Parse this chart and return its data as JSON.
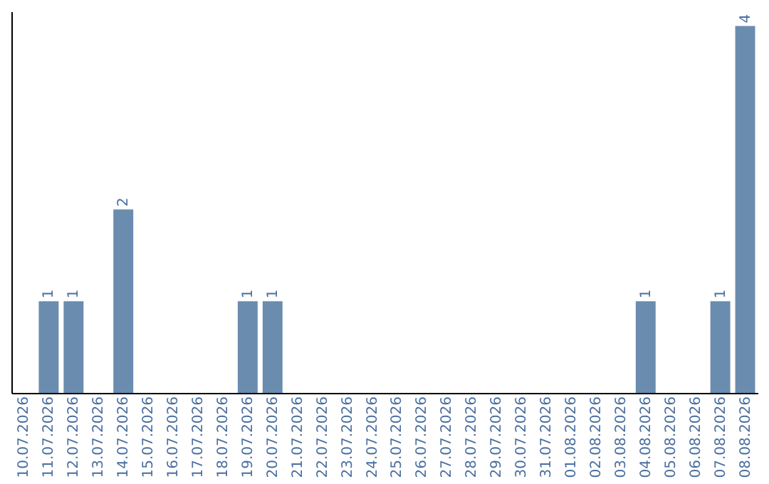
{
  "chart_data": {
    "type": "bar",
    "categories": [
      "10.07.2026",
      "11.07.2026",
      "12.07.2026",
      "13.07.2026",
      "14.07.2026",
      "15.07.2026",
      "16.07.2026",
      "17.07.2026",
      "18.07.2026",
      "19.07.2026",
      "20.07.2026",
      "21.07.2026",
      "22.07.2026",
      "23.07.2026",
      "24.07.2026",
      "25.07.2026",
      "26.07.2026",
      "27.07.2026",
      "28.07.2026",
      "29.07.2026",
      "30.07.2026",
      "31.07.2026",
      "01.08.2026",
      "02.08.2026",
      "03.08.2026",
      "04.08.2026",
      "05.08.2026",
      "06.08.2026",
      "07.08.2026",
      "08.08.2026"
    ],
    "values": [
      0,
      1,
      1,
      0,
      2,
      0,
      0,
      0,
      0,
      1,
      1,
      0,
      0,
      0,
      0,
      0,
      0,
      0,
      0,
      0,
      0,
      0,
      0,
      0,
      0,
      1,
      0,
      0,
      1,
      4
    ],
    "value_labels": [
      null,
      "1",
      "1",
      null,
      "2",
      null,
      null,
      null,
      null,
      "1",
      "1",
      null,
      null,
      null,
      null,
      null,
      null,
      null,
      null,
      null,
      null,
      null,
      null,
      null,
      null,
      "1",
      null,
      null,
      "1",
      "4"
    ],
    "color": "#6a8caf",
    "grid": false
  }
}
